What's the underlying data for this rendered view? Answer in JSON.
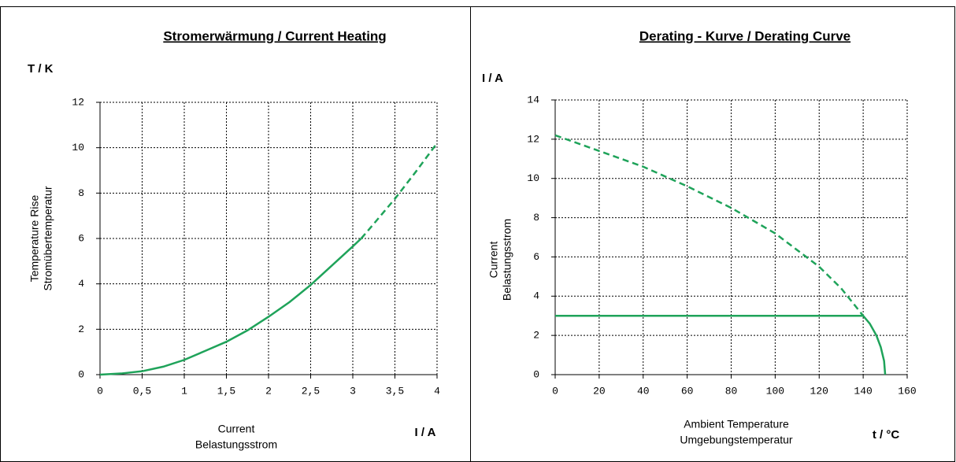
{
  "chart_data": [
    {
      "type": "line",
      "title": "Stromerwärmung / Current Heating",
      "yunit": "T / K",
      "xunit": "I / A",
      "ylabel": [
        "Temperature Rise",
        "Stromübertemperatur"
      ],
      "xlabel": [
        "Current",
        "Belastungsstrom"
      ],
      "xlim": [
        0,
        4
      ],
      "ylim": [
        0,
        12
      ],
      "xticks": [
        0,
        {
          "value": 0.5,
          "label": "0,5"
        },
        1,
        {
          "value": 1.5,
          "label": "1,5"
        },
        2,
        {
          "value": 2.5,
          "label": "2,5"
        },
        3,
        {
          "value": 3.5,
          "label": "3,5"
        },
        4
      ],
      "yticks": [
        0,
        2,
        4,
        6,
        8,
        10,
        12
      ],
      "grid": true,
      "series": [
        {
          "color": "#1fa35a",
          "linestyle": "solid",
          "x": [
            0,
            0.25,
            0.5,
            0.75,
            1,
            1.25,
            1.5,
            1.75,
            2,
            2.25,
            2.5,
            2.75,
            3,
            3.1
          ],
          "values": [
            0,
            0.05,
            0.15,
            0.35,
            0.65,
            1.05,
            1.45,
            1.95,
            2.55,
            3.2,
            3.95,
            4.8,
            5.65,
            6.0
          ]
        },
        {
          "color": "#1fa35a",
          "linestyle": "dashed",
          "x": [
            3.1,
            3.25,
            3.5,
            3.75,
            4
          ],
          "values": [
            6.0,
            6.65,
            7.75,
            8.95,
            10.2
          ]
        }
      ]
    },
    {
      "type": "line",
      "title": "Derating - Kurve / Derating Curve",
      "yunit": "I / A",
      "xunit": "t / °C",
      "ylabel": [
        "Current",
        "Belastungsstrom"
      ],
      "xlabel": [
        "Ambient Temperature",
        "Umgebungstemperatur"
      ],
      "xlim": [
        0,
        160
      ],
      "ylim": [
        0,
        14
      ],
      "xticks": [
        0,
        20,
        40,
        60,
        80,
        100,
        120,
        140,
        160
      ],
      "yticks": [
        0,
        2,
        4,
        6,
        8,
        10,
        12,
        14
      ],
      "grid": true,
      "series": [
        {
          "color": "#1fa35a",
          "linestyle": "dashed",
          "x": [
            0,
            20,
            40,
            60,
            80,
            100,
            120,
            130,
            140
          ],
          "values": [
            12.2,
            11.4,
            10.6,
            9.6,
            8.5,
            7.2,
            5.5,
            4.4,
            3.0
          ]
        },
        {
          "color": "#1fa35a",
          "linestyle": "solid",
          "x": [
            0,
            140,
            143,
            146,
            148,
            149.5,
            150
          ],
          "values": [
            3,
            3,
            2.6,
            2.0,
            1.4,
            0.7,
            0
          ]
        }
      ]
    }
  ]
}
